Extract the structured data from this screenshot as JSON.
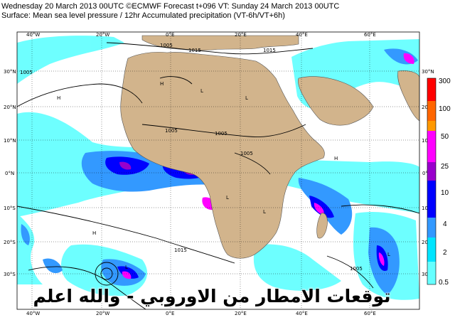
{
  "header": {
    "line1": "Wednesday 20 March 2013 00UTC ©ECMWF Forecast t+096 VT: Sunday 24 March 2013 00UTC",
    "line2": "Surface: Mean sea level pressure / 12hr Accumulated precipitation (VT-6h/VT+6h)"
  },
  "axes": {
    "lon_top": [
      "40°W",
      "20°W",
      "0°E",
      "20°E",
      "40°E",
      "60°E"
    ],
    "lon_bottom": [
      "40°W",
      "20°W",
      "0°E",
      "20°E",
      "40°E",
      "60°E"
    ],
    "lat_left": [
      "30°N",
      "20°N",
      "10°N",
      "0°N",
      "10°S",
      "20°S",
      "30°S"
    ],
    "lat_right": [
      "30°N",
      "20°N",
      "10°N",
      "0°N",
      "10°S",
      "20°S",
      "30°S"
    ]
  },
  "isobars": [
    "1015",
    "1005",
    "1005",
    "1005",
    "1005",
    "1015",
    "1015",
    "1005",
    "1005"
  ],
  "pressure_centres": [
    "H",
    "H",
    "H",
    "L",
    "L",
    "H",
    "L",
    "L",
    "L",
    "L"
  ],
  "legend": {
    "levels": [
      "300",
      "100",
      "50",
      "25",
      "10",
      "4",
      "2",
      "0.5"
    ],
    "colors": [
      "#ff0000",
      "#ff6600",
      "#ff9900",
      "#ff00ff",
      "#9900cc",
      "#0000ff",
      "#3399ff",
      "#00e5ff",
      "#66ffff"
    ]
  },
  "overlay_text": "توقعات الامطار من الاوروبي - والله اعلم",
  "colors": {
    "ocean": "#ffffff",
    "land": "#d2b48c",
    "light_precip": "#66ffff",
    "mid_precip": "#3399ff",
    "heavy_precip": "#0000ff",
    "very_heavy_precip": "#9900cc",
    "extreme_precip": "#ff00ff",
    "isobar": "#000000"
  }
}
